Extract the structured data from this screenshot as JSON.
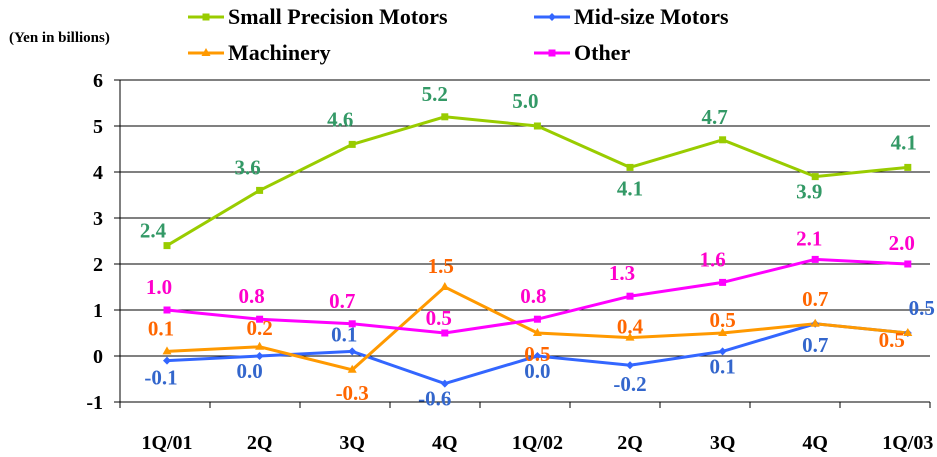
{
  "chart_data": {
    "type": "line",
    "ylabel": "(Yen in billions)",
    "categories": [
      "1Q/01",
      "2Q",
      "3Q",
      "4Q",
      "1Q/02",
      "2Q",
      "3Q",
      "4Q",
      "1Q/03"
    ],
    "ylim": [
      -1,
      6
    ],
    "yticks": [
      "6",
      "5",
      "4",
      "3",
      "2",
      "1",
      "0",
      "-1"
    ],
    "grid": true,
    "legend": "top",
    "series": [
      {
        "name": "Small Precision Motors",
        "color": "#99cc00",
        "label_color": "#339966",
        "marker": "square",
        "values": [
          2.4,
          3.6,
          4.6,
          5.2,
          5.0,
          4.1,
          4.7,
          3.9,
          4.1
        ],
        "labels": [
          "2.4",
          "3.6",
          "4.6",
          "5.2",
          "5.0",
          "4.1",
          "4.7",
          "3.9",
          "4.1"
        ]
      },
      {
        "name": "Mid-size Motors",
        "color": "#3366ff",
        "label_color": "#3366cc",
        "marker": "diamond",
        "values": [
          -0.1,
          0.0,
          0.1,
          -0.6,
          0.0,
          -0.2,
          0.1,
          0.7,
          0.5
        ],
        "labels": [
          "-0.1",
          "0.0",
          "0.1",
          "-0.6",
          "0.0",
          "-0.2",
          "0.1",
          "0.7",
          "0.5"
        ]
      },
      {
        "name": "Machinery",
        "color": "#ff9900",
        "label_color": "#ff6600",
        "marker": "triangle",
        "values": [
          0.1,
          0.2,
          -0.3,
          1.5,
          0.5,
          0.4,
          0.5,
          0.7,
          0.5
        ],
        "labels": [
          "0.1",
          "0.2",
          "-0.3",
          "1.5",
          "0.5",
          "0.4",
          "0.5",
          "0.7",
          "0.5"
        ]
      },
      {
        "name": "Other",
        "color": "#ff00ff",
        "label_color": "#ff00cc",
        "marker": "square",
        "values": [
          1.0,
          0.8,
          0.7,
          0.5,
          0.8,
          1.3,
          1.6,
          2.1,
          2.0
        ],
        "labels": [
          "1.0",
          "0.8",
          "0.7",
          "0.5",
          "0.8",
          "1.3",
          "1.6",
          "2.1",
          "2.0"
        ]
      }
    ]
  }
}
